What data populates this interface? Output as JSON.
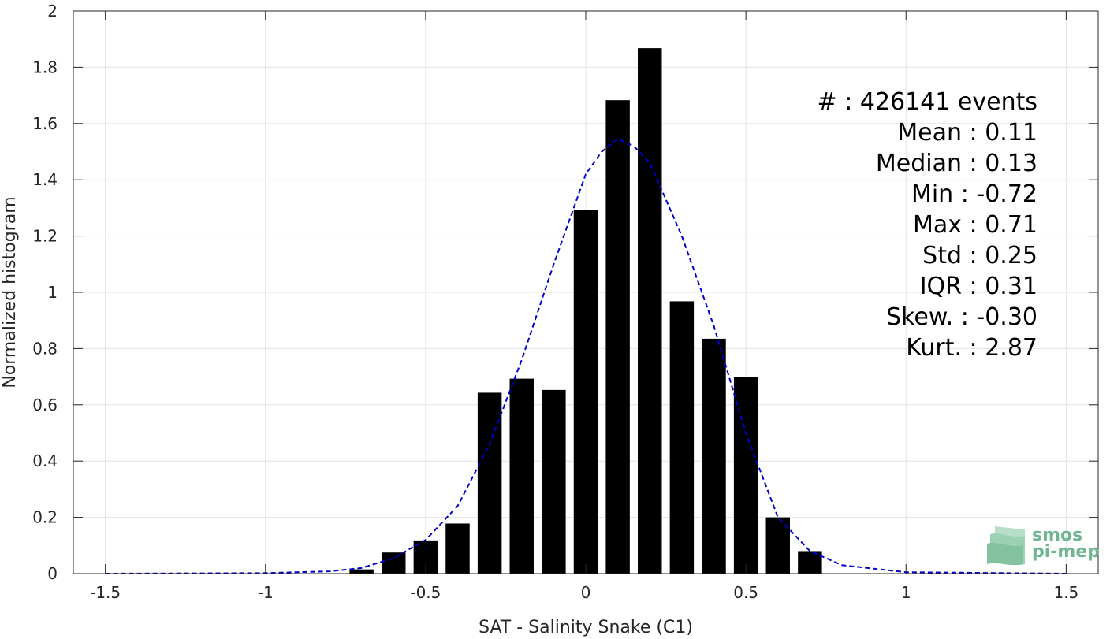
{
  "chart_data": {
    "type": "bar",
    "xlabel": "SAT - Salinity Snake (C1)",
    "ylabel": "Normalized histogram",
    "xlim": [
      -1.6,
      1.6
    ],
    "ylim": [
      0,
      2
    ],
    "x_ticks": [
      -1.5,
      -1,
      -0.5,
      0,
      0.5,
      1,
      1.5
    ],
    "x_tick_labels": [
      "-1.5",
      "-1",
      "-0.5",
      "0",
      "0.5",
      "1",
      "1.5"
    ],
    "y_ticks": [
      0,
      0.2,
      0.4,
      0.6,
      0.8,
      1,
      1.2,
      1.4,
      1.6,
      1.8,
      2
    ],
    "y_tick_labels": [
      "0",
      "0.2",
      "0.4",
      "0.6",
      "0.8",
      "1",
      "1.2",
      "1.4",
      "1.6",
      "1.8",
      "2"
    ],
    "grid": true,
    "bin_width": 0.1,
    "bar_color": "#000000",
    "bars": {
      "x": [
        -0.7,
        -0.6,
        -0.5,
        -0.4,
        -0.3,
        -0.2,
        -0.1,
        0.0,
        0.1,
        0.2,
        0.3,
        0.4,
        0.5,
        0.6,
        0.7
      ],
      "values": [
        0.015,
        0.075,
        0.118,
        0.178,
        0.643,
        0.693,
        0.653,
        1.293,
        1.683,
        1.868,
        0.968,
        0.835,
        0.698,
        0.2,
        0.08
      ]
    },
    "fit_curve": {
      "style": "dashed",
      "color": "#0000cc",
      "x": [
        -1.5,
        -1.0,
        -0.8,
        -0.7,
        -0.6,
        -0.5,
        -0.4,
        -0.3,
        -0.2,
        -0.1,
        0.0,
        0.05,
        0.1,
        0.15,
        0.2,
        0.3,
        0.4,
        0.5,
        0.6,
        0.7,
        0.8,
        1.0,
        1.5
      ],
      "y": [
        0.0,
        0.002,
        0.008,
        0.02,
        0.055,
        0.12,
        0.24,
        0.46,
        0.76,
        1.1,
        1.42,
        1.5,
        1.545,
        1.52,
        1.46,
        1.2,
        0.88,
        0.5,
        0.2,
        0.08,
        0.03,
        0.005,
        0.0
      ]
    },
    "annotations": [
      "#  : 426141 events",
      "Mean : 0.11",
      "Median : 0.13",
      "Min : -0.72",
      "Max : 0.71",
      "Std : 0.25",
      "IQR : 0.31",
      "Skew. : -0.30",
      "Kurt. : 2.87"
    ]
  },
  "logo": {
    "line1": "smos",
    "line2": "pi-mep",
    "color": "#6fb591"
  }
}
